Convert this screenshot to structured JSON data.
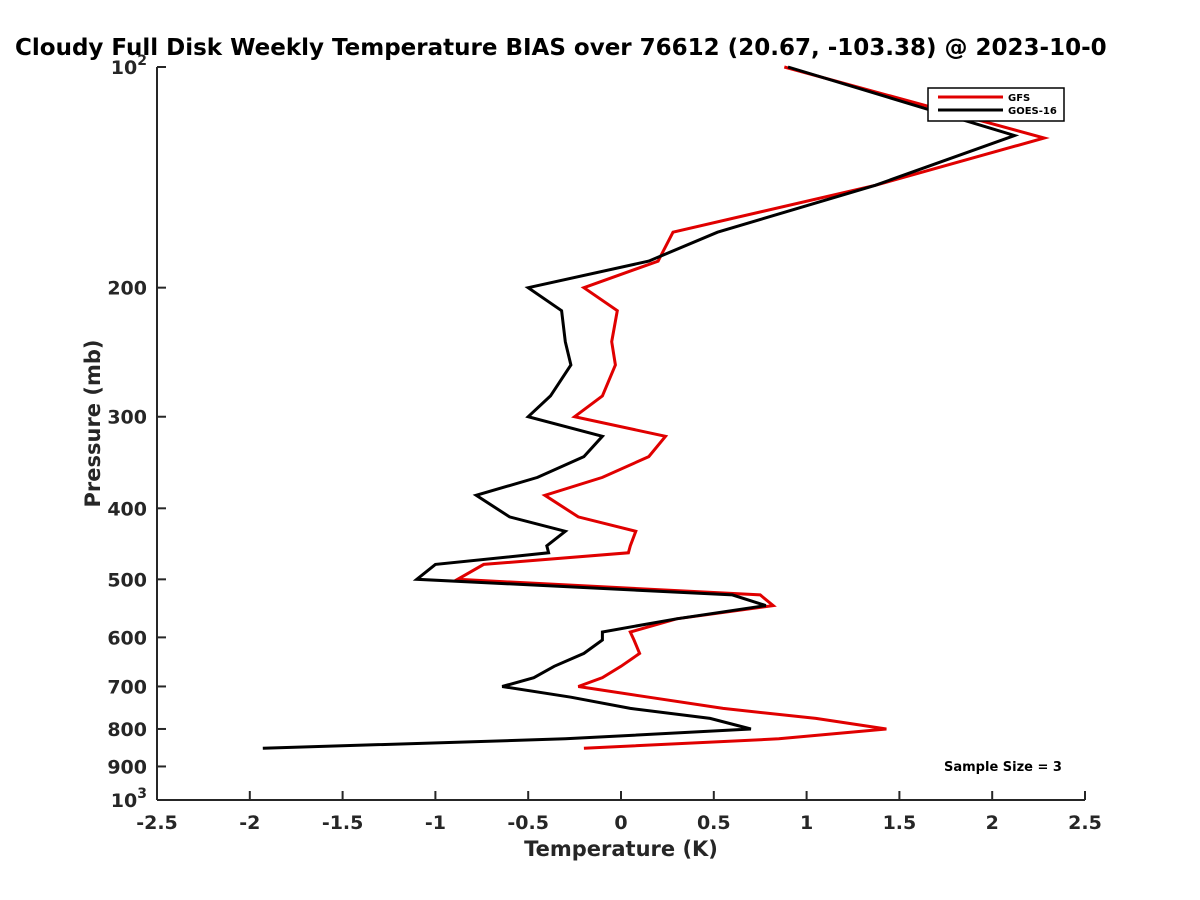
{
  "chart_data": {
    "type": "line",
    "title": "Cloudy Full Disk Weekly Temperature BIAS over 76612 (20.67, -103.38) @ 2023-10-0",
    "xlabel": "Temperature (K)",
    "ylabel": "Pressure (mb)",
    "xlim": [
      -2.5,
      2.5
    ],
    "ylim": [
      100,
      1000
    ],
    "y_scale": "log",
    "y_reversed": true,
    "grid": false,
    "legend_position": "top-right",
    "x_ticks": [
      -2.5,
      -2,
      -1.5,
      -1,
      -0.5,
      0,
      0.5,
      1,
      1.5,
      2,
      2.5
    ],
    "x_tick_labels": [
      "-2.5",
      "-2",
      "-1.5",
      "-1",
      "-0.5",
      "0",
      "0.5",
      "1",
      "1.5",
      "2",
      "2.5"
    ],
    "y_ticks": [
      100,
      200,
      300,
      400,
      500,
      600,
      700,
      800,
      900,
      1000
    ],
    "y_tick_labels": [
      {
        "base": "10",
        "exp": "2"
      },
      {
        "base": "200",
        "exp": ""
      },
      {
        "base": "300",
        "exp": ""
      },
      {
        "base": "400",
        "exp": ""
      },
      {
        "base": "500",
        "exp": ""
      },
      {
        "base": "600",
        "exp": ""
      },
      {
        "base": "700",
        "exp": ""
      },
      {
        "base": "800",
        "exp": ""
      },
      {
        "base": "900",
        "exp": ""
      },
      {
        "base": "10",
        "exp": "3"
      }
    ],
    "annotation": "Sample Size = 3",
    "series": [
      {
        "name": "GFS",
        "color": "#e00000",
        "points": [
          [
            0.88,
            100
          ],
          [
            2.28,
            125
          ],
          [
            1.37,
            145
          ],
          [
            0.28,
            168
          ],
          [
            0.2,
            184
          ],
          [
            -0.2,
            200
          ],
          [
            -0.02,
            215
          ],
          [
            -0.05,
            237
          ],
          [
            -0.03,
            255
          ],
          [
            -0.1,
            281
          ],
          [
            -0.25,
            300
          ],
          [
            0.24,
            319
          ],
          [
            0.15,
            340
          ],
          [
            -0.1,
            363
          ],
          [
            -0.41,
            384
          ],
          [
            -0.23,
            411
          ],
          [
            0.08,
            430
          ],
          [
            0.05,
            450
          ],
          [
            0.04,
            460
          ],
          [
            -0.74,
            477
          ],
          [
            -0.88,
            500
          ],
          [
            0.75,
            525
          ],
          [
            0.82,
            543
          ],
          [
            0.3,
            566
          ],
          [
            0.05,
            590
          ],
          [
            0.07,
            605
          ],
          [
            0.1,
            631
          ],
          [
            0.0,
            657
          ],
          [
            -0.1,
            681
          ],
          [
            -0.23,
            700
          ],
          [
            0.15,
            724
          ],
          [
            0.55,
            750
          ],
          [
            1.05,
            774
          ],
          [
            1.43,
            800
          ],
          [
            0.85,
            825
          ],
          [
            -0.2,
            850
          ]
        ]
      },
      {
        "name": "GOES-16",
        "color": "#000000",
        "points": [
          [
            0.9,
            100
          ],
          [
            2.12,
            124
          ],
          [
            1.37,
            145
          ],
          [
            0.52,
            168
          ],
          [
            0.15,
            184
          ],
          [
            -0.5,
            200
          ],
          [
            -0.32,
            215
          ],
          [
            -0.3,
            237
          ],
          [
            -0.27,
            255
          ],
          [
            -0.38,
            281
          ],
          [
            -0.5,
            300
          ],
          [
            -0.1,
            319
          ],
          [
            -0.2,
            340
          ],
          [
            -0.45,
            363
          ],
          [
            -0.78,
            384
          ],
          [
            -0.6,
            411
          ],
          [
            -0.3,
            430
          ],
          [
            -0.4,
            450
          ],
          [
            -0.39,
            460
          ],
          [
            -1.0,
            477
          ],
          [
            -1.1,
            500
          ],
          [
            0.6,
            525
          ],
          [
            0.78,
            543
          ],
          [
            0.3,
            566
          ],
          [
            -0.1,
            590
          ],
          [
            -0.1,
            605
          ],
          [
            -0.2,
            631
          ],
          [
            -0.36,
            657
          ],
          [
            -0.47,
            681
          ],
          [
            -0.64,
            700
          ],
          [
            -0.27,
            724
          ],
          [
            0.05,
            750
          ],
          [
            0.48,
            774
          ],
          [
            0.7,
            800
          ],
          [
            -0.3,
            825
          ],
          [
            -1.93,
            850
          ]
        ]
      }
    ]
  }
}
